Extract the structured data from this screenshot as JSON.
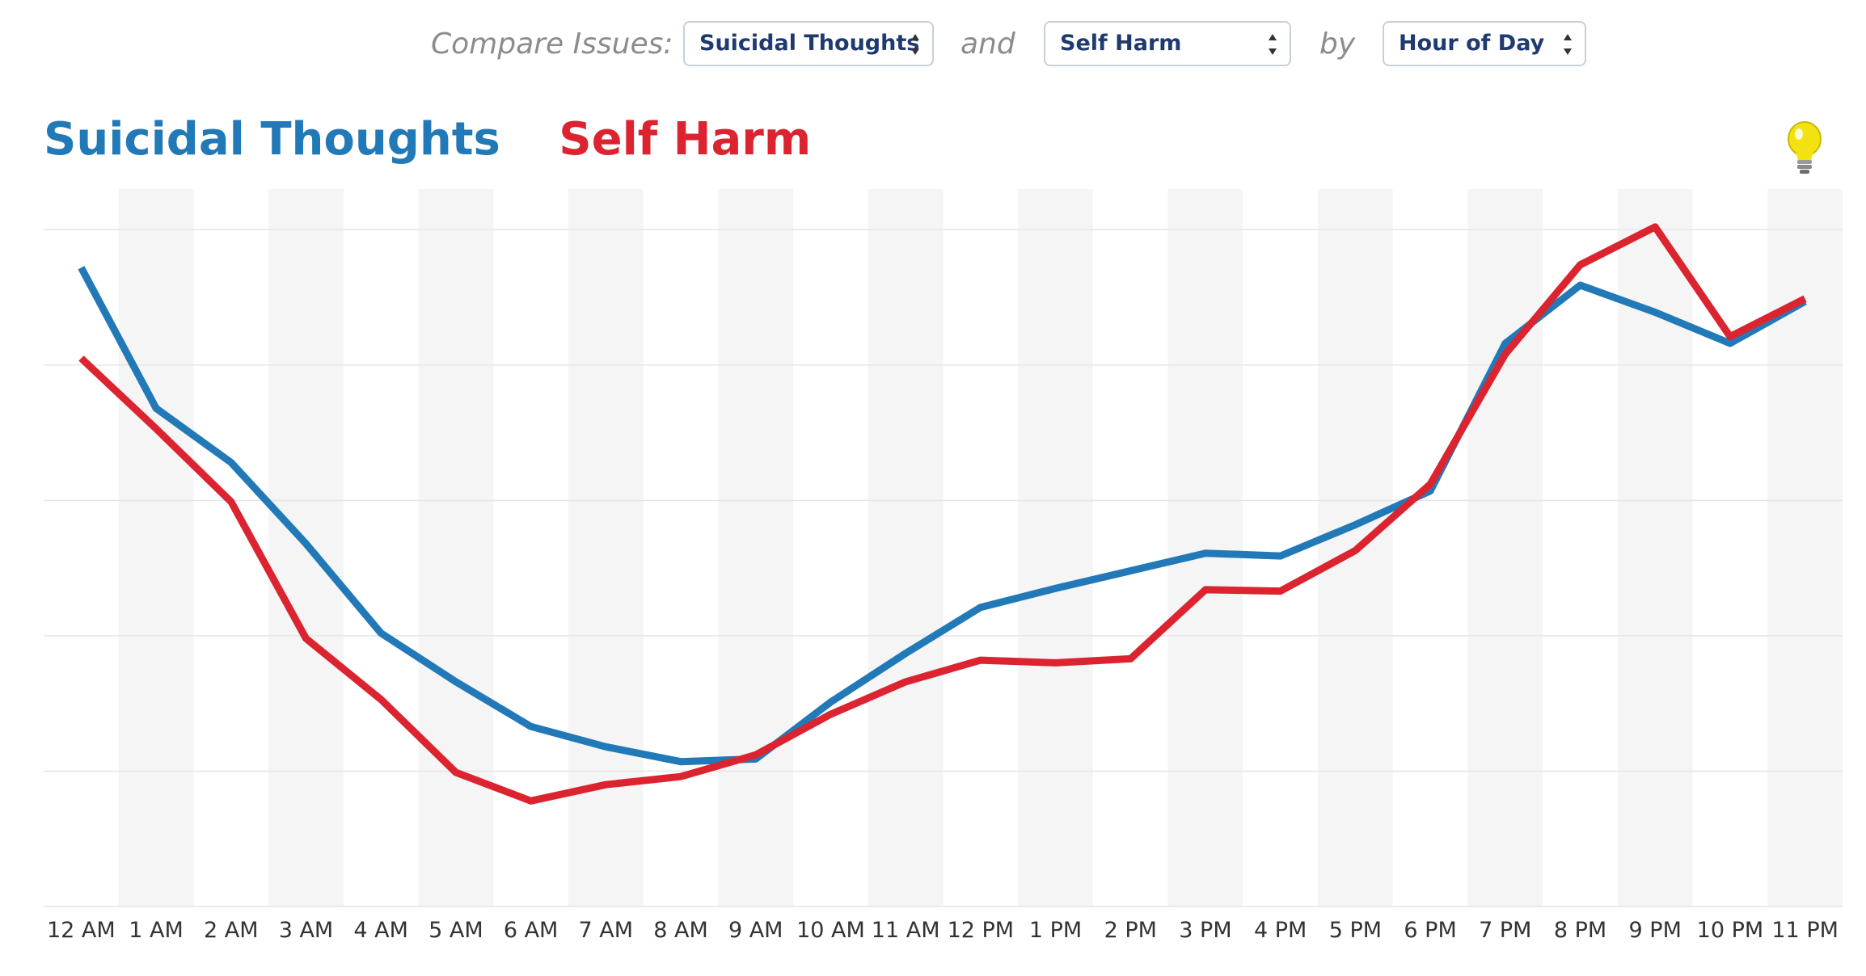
{
  "controls": {
    "compare_label": "Compare Issues:",
    "issue1": "Suicidal Thoughts",
    "and_label": "and",
    "issue2": "Self Harm",
    "by_label": "by",
    "dimension": "Hour of Day"
  },
  "colors": {
    "series1": "#2279b8",
    "series2": "#dc2430",
    "band": "#f5f5f5",
    "grid": "#e6e6e6",
    "bulb": "#f2e20f"
  },
  "icons": {
    "hint": "lightbulb-icon"
  },
  "chart_data": {
    "type": "line",
    "x": [
      "12 AM",
      "1 AM",
      "2 AM",
      "3 AM",
      "4 AM",
      "5 AM",
      "6 AM",
      "7 AM",
      "8 AM",
      "9 AM",
      "10 AM",
      "11 AM",
      "12 PM",
      "1 PM",
      "2 PM",
      "3 PM",
      "4 PM",
      "5 PM",
      "6 PM",
      "7 PM",
      "8 PM",
      "9 PM",
      "10 PM",
      "11 PM"
    ],
    "series": [
      {
        "name": "Suicidal Thoughts",
        "color": "#2279b8",
        "values": [
          4.72,
          3.68,
          3.28,
          2.68,
          2.02,
          1.66,
          1.33,
          1.18,
          1.07,
          1.09,
          1.51,
          1.87,
          2.21,
          2.35,
          2.48,
          2.61,
          2.59,
          2.82,
          3.07,
          4.16,
          4.59,
          4.39,
          4.16,
          4.47
        ]
      },
      {
        "name": "Self Harm",
        "color": "#dc2430",
        "values": [
          4.05,
          3.53,
          2.99,
          1.98,
          1.53,
          0.99,
          0.78,
          0.9,
          0.96,
          1.12,
          1.42,
          1.66,
          1.82,
          1.8,
          1.83,
          2.34,
          2.33,
          2.63,
          3.12,
          4.08,
          4.74,
          5.02,
          4.21,
          4.49
        ]
      }
    ],
    "ylim": [
      0,
      5.3
    ],
    "y_ticks": [
      1,
      2,
      3,
      4,
      5
    ],
    "grid": true,
    "alternating_bands": true
  }
}
